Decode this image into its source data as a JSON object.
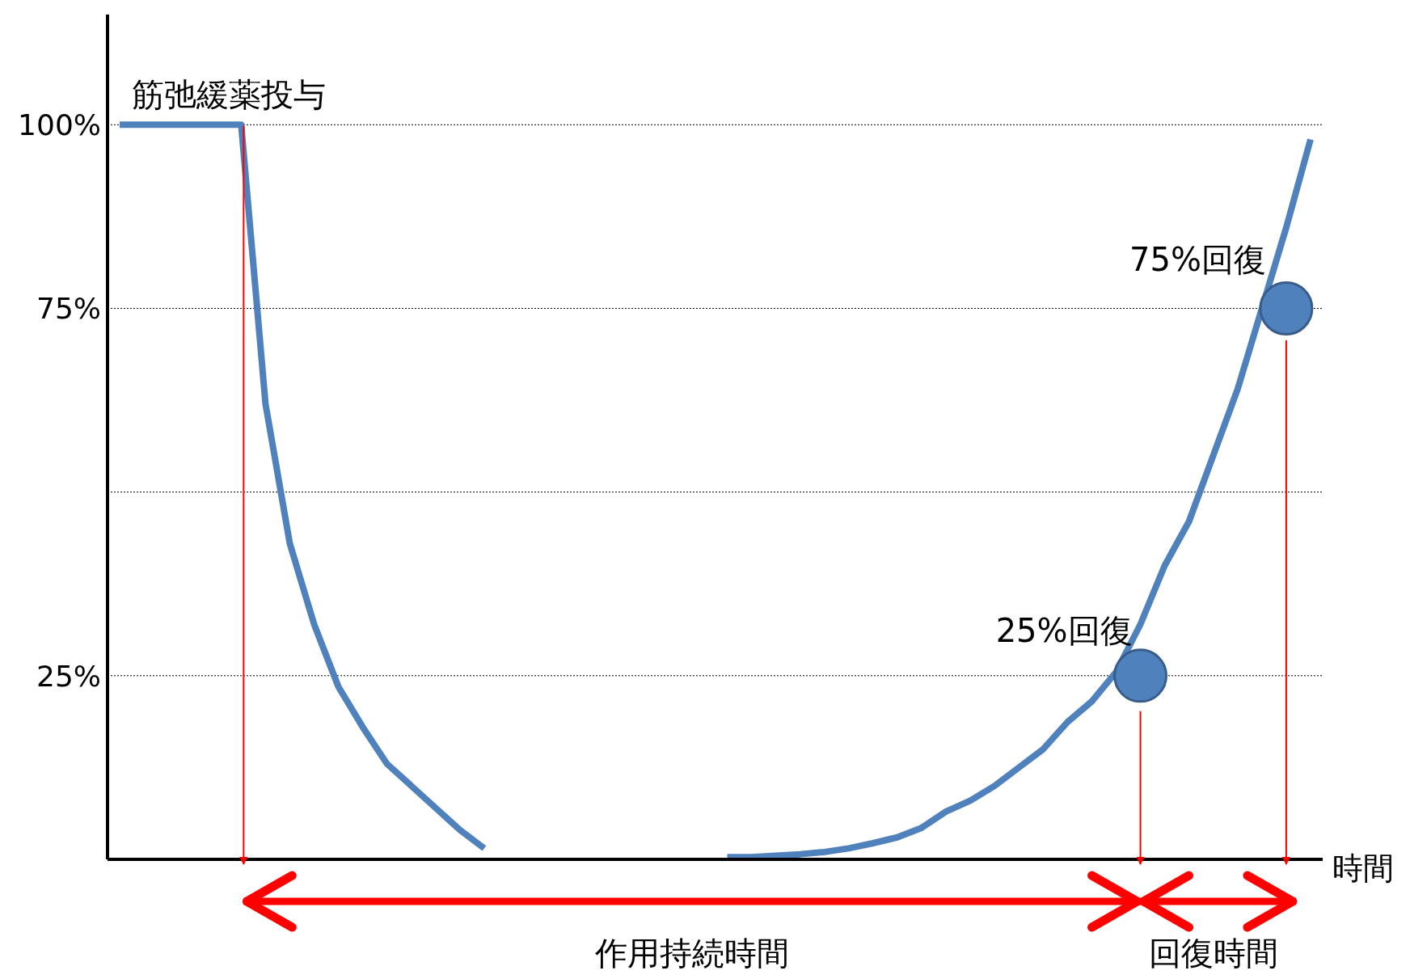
{
  "chart_data": {
    "type": "line",
    "xlabel": "時間",
    "categories": [
      null,
      null,
      null,
      null,
      null,
      null,
      null,
      null,
      null,
      null,
      null,
      null,
      null,
      null,
      null,
      null,
      null,
      null,
      null,
      null,
      null,
      null,
      null,
      null,
      null,
      null,
      null,
      null,
      null,
      null,
      null,
      null,
      null,
      null,
      null,
      null,
      null,
      null,
      null,
      null,
      null,
      null,
      null,
      null,
      null,
      null,
      null,
      null,
      null,
      null
    ],
    "series": [
      {
        "color": "#4f81bd",
        "values": [
          100,
          100,
          100,
          100,
          100,
          100,
          62,
          43,
          32,
          23.5,
          18,
          13,
          10,
          7,
          4,
          1.5,
          null,
          null,
          null,
          null,
          null,
          null,
          null,
          null,
          null,
          null,
          null,
          null,
          null,
          null,
          null,
          null,
          null,
          null,
          null,
          null,
          null,
          null,
          null,
          null,
          null,
          null,
          null,
          null,
          null,
          null,
          null,
          null,
          null,
          null
        ]
      },
      {
        "color": "#4f81bd",
        "values": [
          null,
          null,
          null,
          null,
          null,
          null,
          null,
          null,
          null,
          null,
          null,
          null,
          null,
          null,
          null,
          null,
          null,
          null,
          null,
          null,
          null,
          null,
          null,
          null,
          null,
          0.3,
          0.3,
          0.5,
          0.7,
          1,
          1.5,
          2.2,
          3,
          4.3,
          6.5,
          8,
          10,
          12.5,
          15,
          18.7,
          21.5,
          25.5,
          32,
          40,
          46,
          55,
          64,
          75,
          86,
          98
        ]
      },
      {
        "type": "scatter",
        "marker": "circle",
        "color": "#4f81bd",
        "values": [
          null,
          null,
          null,
          null,
          null,
          null,
          null,
          null,
          null,
          null,
          null,
          null,
          null,
          null,
          null,
          null,
          null,
          null,
          null,
          null,
          null,
          null,
          null,
          null,
          null,
          null,
          null,
          null,
          null,
          null,
          null,
          null,
          null,
          null,
          null,
          null,
          null,
          null,
          null,
          null,
          null,
          null,
          25,
          null,
          null,
          null,
          null,
          null,
          75,
          null
        ]
      }
    ],
    "ylim": [
      0,
      115
    ],
    "yticks": [
      {
        "value": 100,
        "label": "100%"
      },
      {
        "value": 75,
        "label": "75%"
      },
      {
        "value": 50,
        "label": null
      },
      {
        "value": 25,
        "label": "25%"
      }
    ],
    "grid": "y",
    "tick_labels": "y",
    "line_style": "solid",
    "annotations": [
      "筋弛緩薬投与",
      "75%回復",
      "25%回復",
      "作用持続時間",
      "回復時間"
    ]
  }
}
